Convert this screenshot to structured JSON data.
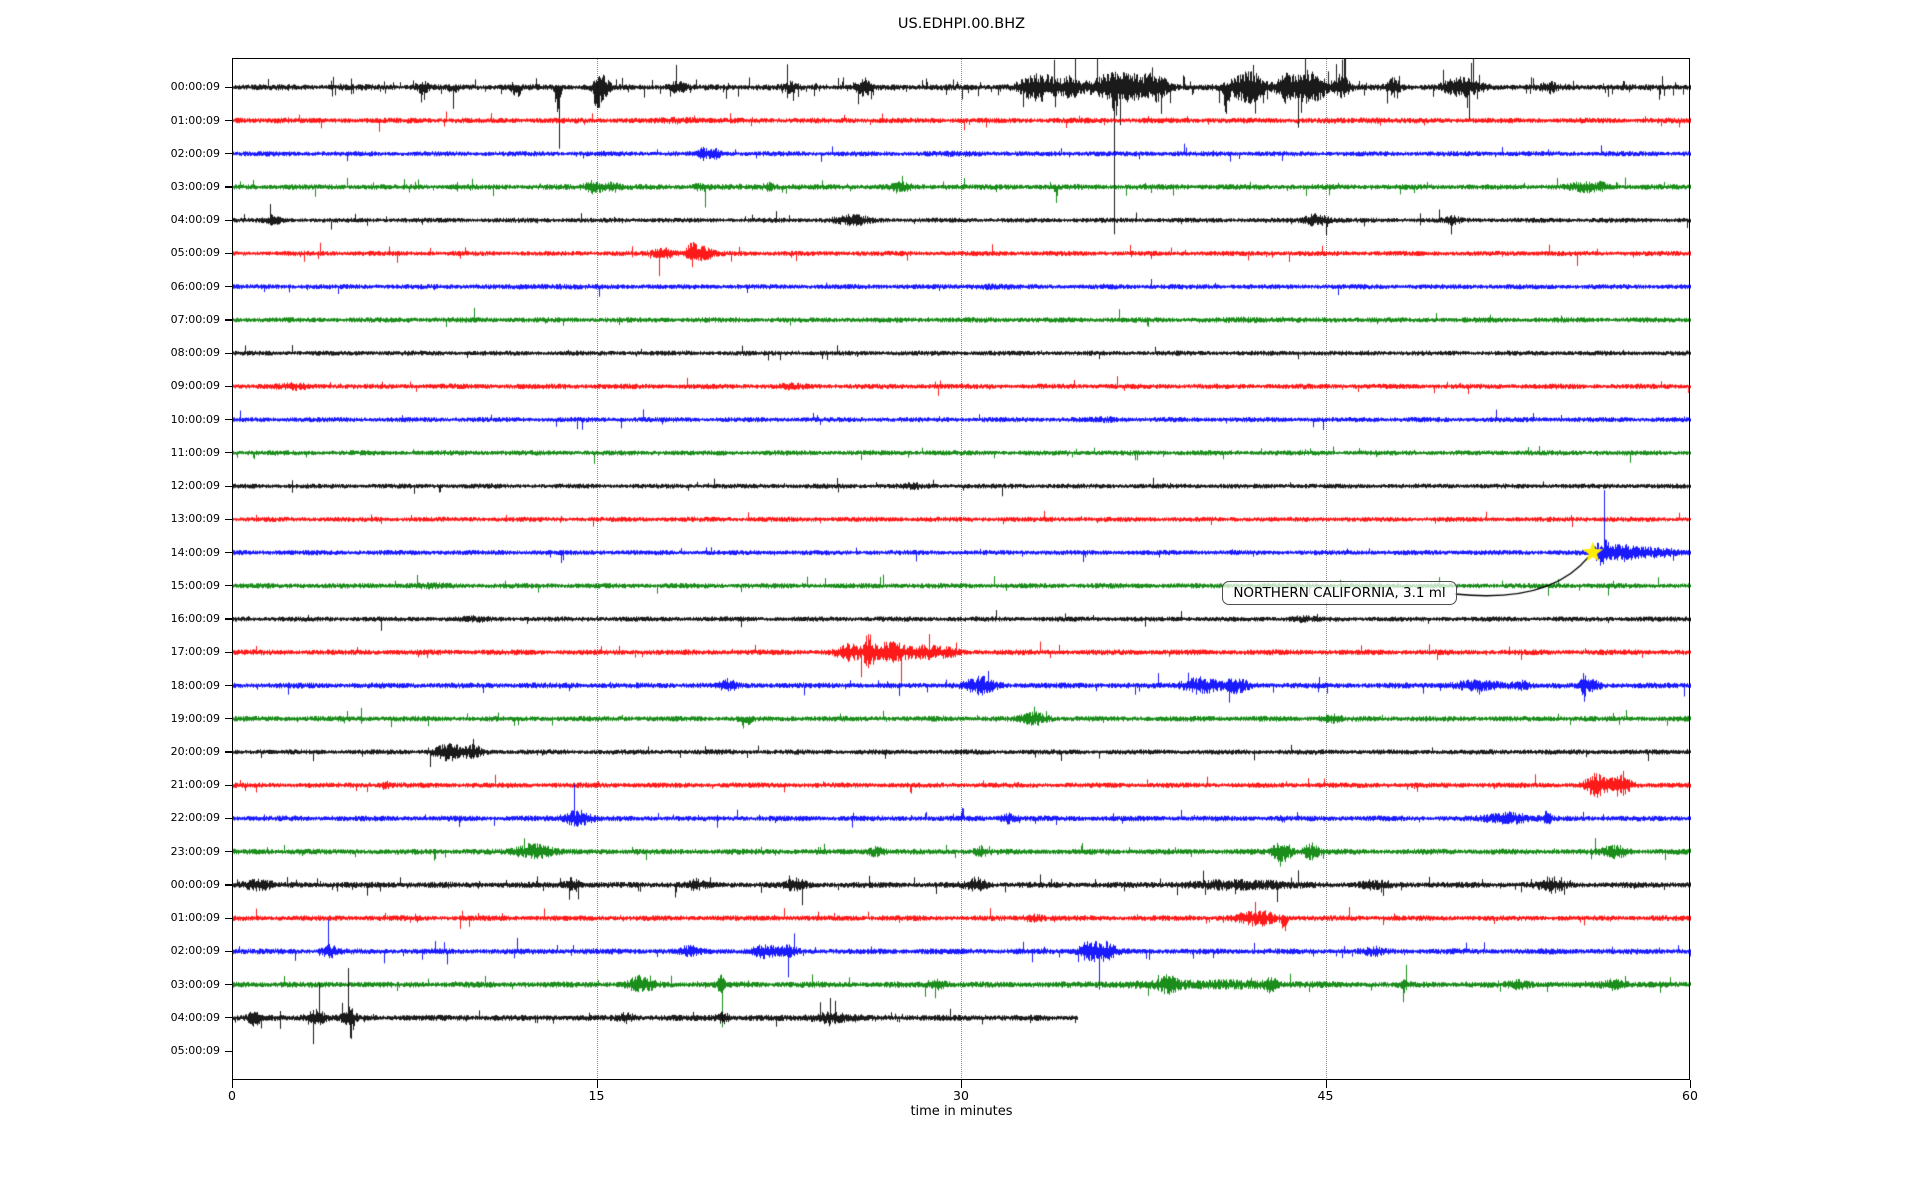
{
  "title": "US.EDHPI.00.BHZ",
  "colors": {
    "background": "#ffffff",
    "frame": "#000000",
    "grid": "#8a8a8a",
    "annotation_border": "#4d4d4d",
    "arrow": "#000000"
  },
  "chart_data": {
    "type": "line",
    "variant": "seismogram-helicorder-dayplot",
    "title": "US.EDHPI.00.BHZ",
    "xlabel": "time in minutes",
    "xlim": [
      0,
      60
    ],
    "xticks": [
      0,
      15,
      30,
      45,
      60
    ],
    "grid_minutes": [
      15,
      30,
      45
    ],
    "grid_on": true,
    "color_cycle": [
      "#000000",
      "#ff0000",
      "#0000ff",
      "#008000"
    ],
    "annotation": {
      "text": "NORTHERN CALIFORNIA, 3.1 ml",
      "row_index": 14,
      "row_label": "14:00:09",
      "minute": 56.0,
      "marker": "star",
      "marker_color": "#ffec00"
    },
    "rows": [
      {
        "label": "00:00:09",
        "end": 60,
        "base": 2.8,
        "p": 0.05,
        "bursts": [
          {
            "m": 7.8,
            "w": 0.25,
            "a": 5
          },
          {
            "m": 9.1,
            "w": 0.15,
            "a": 7,
            "d": -1
          },
          {
            "m": 11.7,
            "w": 0.2,
            "a": 8,
            "d": -1
          },
          {
            "m": 13.4,
            "w": 0.1,
            "a": 46,
            "d": -1
          },
          {
            "m": 15.0,
            "w": 0.12,
            "a": 36,
            "d": -1
          },
          {
            "m": 15.2,
            "w": 0.3,
            "a": 10
          },
          {
            "m": 18.3,
            "w": 0.3,
            "a": 6
          },
          {
            "m": 23.0,
            "w": 0.3,
            "a": 4
          },
          {
            "m": 26.0,
            "w": 0.3,
            "a": 7
          },
          {
            "m": 33.2,
            "w": 0.8,
            "a": 12
          },
          {
            "m": 34.5,
            "w": 0.4,
            "a": 8
          },
          {
            "m": 36.5,
            "w": 1.2,
            "a": 14
          },
          {
            "m": 36.3,
            "w": 0.1,
            "a": 24,
            "d": -1
          },
          {
            "m": 38.0,
            "w": 0.5,
            "a": 10
          },
          {
            "m": 40.9,
            "w": 0.1,
            "a": 40,
            "d": -1
          },
          {
            "m": 41.8,
            "w": 0.7,
            "a": 15
          },
          {
            "m": 43.3,
            "w": 0.3,
            "a": 10
          },
          {
            "m": 44.3,
            "w": 0.8,
            "a": 15
          },
          {
            "m": 45.7,
            "w": 0.3,
            "a": 9
          },
          {
            "m": 47.8,
            "w": 0.25,
            "a": 8
          },
          {
            "m": 50.6,
            "w": 0.8,
            "a": 8
          },
          {
            "m": 54.2,
            "w": 0.3,
            "a": 4
          }
        ]
      },
      {
        "label": "01:00:09",
        "end": 60,
        "base": 2.6,
        "p": 0.012,
        "bursts": [
          {
            "m": 2.0,
            "w": 0.5,
            "a": 1
          },
          {
            "m": 18.5,
            "w": 0.8,
            "a": 1.5
          },
          {
            "m": 47.0,
            "w": 0.6,
            "a": 1
          }
        ]
      },
      {
        "label": "02:00:09",
        "end": 60,
        "base": 2.4,
        "p": 0.01,
        "bursts": [
          {
            "m": 19.4,
            "w": 0.25,
            "a": 5
          },
          {
            "m": 19.9,
            "w": 0.2,
            "a": 4
          },
          {
            "m": 30.0,
            "w": 1.0,
            "a": 0.8
          }
        ]
      },
      {
        "label": "03:00:09",
        "end": 60,
        "base": 2.6,
        "p": 0.015,
        "bursts": [
          {
            "m": 14.9,
            "w": 0.35,
            "a": 6
          },
          {
            "m": 15.7,
            "w": 0.3,
            "a": 4
          },
          {
            "m": 19.3,
            "w": 0.3,
            "a": 3
          },
          {
            "m": 22.1,
            "w": 0.3,
            "a": 3
          },
          {
            "m": 27.5,
            "w": 0.4,
            "a": 3
          },
          {
            "m": 33.9,
            "w": 0.08,
            "a": 14,
            "d": -1
          },
          {
            "m": 55.6,
            "w": 0.5,
            "a": 4
          },
          {
            "m": 56.3,
            "w": 0.3,
            "a": 3
          }
        ]
      },
      {
        "label": "04:00:09",
        "end": 60,
        "base": 2.3,
        "p": 0.01,
        "bursts": [
          {
            "m": 1.7,
            "w": 0.3,
            "a": 4
          },
          {
            "m": 25.5,
            "w": 0.7,
            "a": 4
          },
          {
            "m": 44.6,
            "w": 0.5,
            "a": 5
          },
          {
            "m": 50.2,
            "w": 0.3,
            "a": 3
          }
        ]
      },
      {
        "label": "05:00:09",
        "end": 60,
        "base": 2.4,
        "p": 0.01,
        "bursts": [
          {
            "m": 17.8,
            "w": 0.5,
            "a": 4
          },
          {
            "m": 18.9,
            "w": 0.25,
            "a": 12
          },
          {
            "m": 19.4,
            "w": 0.4,
            "a": 5
          }
        ]
      },
      {
        "label": "06:00:09",
        "end": 60,
        "base": 2.4,
        "p": 0.008,
        "bursts": [
          {
            "m": 13.0,
            "w": 1.0,
            "a": 0.8
          },
          {
            "m": 31.0,
            "w": 0.8,
            "a": 1
          }
        ]
      },
      {
        "label": "07:00:09",
        "end": 60,
        "base": 2.5,
        "p": 0.008,
        "bursts": [
          {
            "m": 42.0,
            "w": 1.0,
            "a": 0.8
          }
        ]
      },
      {
        "label": "08:00:09",
        "end": 60,
        "base": 2.3,
        "p": 0.008,
        "bursts": []
      },
      {
        "label": "09:00:09",
        "end": 60,
        "base": 2.5,
        "p": 0.01,
        "bursts": [
          {
            "m": 2.5,
            "w": 0.6,
            "a": 2
          },
          {
            "m": 23.0,
            "w": 0.5,
            "a": 1.5
          }
        ]
      },
      {
        "label": "10:00:09",
        "end": 60,
        "base": 2.4,
        "p": 0.008,
        "bursts": [
          {
            "m": 36.0,
            "w": 0.8,
            "a": 1
          }
        ]
      },
      {
        "label": "11:00:09",
        "end": 60,
        "base": 2.4,
        "p": 0.008,
        "bursts": []
      },
      {
        "label": "12:00:09",
        "end": 60,
        "base": 2.3,
        "p": 0.008,
        "bursts": [
          {
            "m": 28.0,
            "w": 0.5,
            "a": 1.5
          }
        ]
      },
      {
        "label": "13:00:09",
        "end": 60,
        "base": 2.4,
        "p": 0.008,
        "bursts": []
      },
      {
        "label": "14:00:09",
        "end": 60,
        "base": 2.4,
        "p": 0.01,
        "bursts": [
          {
            "m": 56.4,
            "w": 0.35,
            "a": 11
          },
          {
            "m": 57.2,
            "w": 0.5,
            "a": 6
          },
          {
            "m": 58.3,
            "w": 1.2,
            "a": 3.5
          }
        ]
      },
      {
        "label": "15:00:09",
        "end": 60,
        "base": 2.5,
        "p": 0.008,
        "bursts": [
          {
            "m": 8.0,
            "w": 1.0,
            "a": 0.8
          }
        ]
      },
      {
        "label": "16:00:09",
        "end": 60,
        "base": 2.4,
        "p": 0.01,
        "bursts": [
          {
            "m": 10.0,
            "w": 0.5,
            "a": 1.5
          },
          {
            "m": 44.0,
            "w": 0.5,
            "a": 1.5
          }
        ]
      },
      {
        "label": "17:00:09",
        "end": 60,
        "base": 2.6,
        "p": 0.012,
        "bursts": [
          {
            "m": 25.4,
            "w": 0.5,
            "a": 7
          },
          {
            "m": 26.2,
            "w": 0.18,
            "a": 16
          },
          {
            "m": 27.1,
            "w": 0.8,
            "a": 9
          },
          {
            "m": 28.6,
            "w": 0.6,
            "a": 5
          },
          {
            "m": 29.5,
            "w": 0.4,
            "a": 3
          }
        ]
      },
      {
        "label": "18:00:09",
        "end": 60,
        "base": 2.7,
        "p": 0.015,
        "bursts": [
          {
            "m": 20.4,
            "w": 0.3,
            "a": 5
          },
          {
            "m": 30.8,
            "w": 0.6,
            "a": 7
          },
          {
            "m": 39.8,
            "w": 0.7,
            "a": 7
          },
          {
            "m": 41.3,
            "w": 0.5,
            "a": 6
          },
          {
            "m": 51.2,
            "w": 0.9,
            "a": 4
          },
          {
            "m": 53.0,
            "w": 0.4,
            "a": 4
          },
          {
            "m": 55.6,
            "w": 0.12,
            "a": 11
          },
          {
            "m": 56.0,
            "w": 0.3,
            "a": 5
          }
        ]
      },
      {
        "label": "19:00:09",
        "end": 60,
        "base": 2.6,
        "p": 0.012,
        "bursts": [
          {
            "m": 21.1,
            "w": 0.2,
            "a": 8,
            "d": -1
          },
          {
            "m": 33.0,
            "w": 0.5,
            "a": 5
          },
          {
            "m": 45.2,
            "w": 0.4,
            "a": 3
          }
        ]
      },
      {
        "label": "20:00:09",
        "end": 60,
        "base": 2.4,
        "p": 0.012,
        "bursts": [
          {
            "m": 8.9,
            "w": 0.6,
            "a": 7
          },
          {
            "m": 9.9,
            "w": 0.4,
            "a": 5
          }
        ]
      },
      {
        "label": "21:00:09",
        "end": 60,
        "base": 2.5,
        "p": 0.012,
        "bursts": [
          {
            "m": 6.3,
            "w": 0.2,
            "a": 3
          },
          {
            "m": 56.1,
            "w": 0.4,
            "a": 10
          },
          {
            "m": 57.1,
            "w": 0.45,
            "a": 9
          }
        ]
      },
      {
        "label": "22:00:09",
        "end": 60,
        "base": 2.6,
        "p": 0.012,
        "bursts": [
          {
            "m": 14.2,
            "w": 0.55,
            "a": 7
          },
          {
            "m": 31.9,
            "w": 0.3,
            "a": 4
          },
          {
            "m": 52.5,
            "w": 0.8,
            "a": 5
          },
          {
            "m": 54.1,
            "w": 0.15,
            "a": 6
          }
        ]
      },
      {
        "label": "23:00:09",
        "end": 60,
        "base": 2.7,
        "p": 0.015,
        "bursts": [
          {
            "m": 12.4,
            "w": 0.7,
            "a": 7
          },
          {
            "m": 26.5,
            "w": 0.3,
            "a": 4
          },
          {
            "m": 30.8,
            "w": 0.25,
            "a": 4
          },
          {
            "m": 43.2,
            "w": 0.4,
            "a": 9
          },
          {
            "m": 44.4,
            "w": 0.3,
            "a": 7
          },
          {
            "m": 56.9,
            "w": 0.5,
            "a": 5
          }
        ]
      },
      {
        "label": "00:00:09",
        "end": 60,
        "base": 2.8,
        "p": 0.02,
        "bursts": [
          {
            "m": 1.0,
            "w": 0.6,
            "a": 4
          },
          {
            "m": 14.0,
            "w": 0.3,
            "a": 6
          },
          {
            "m": 19.1,
            "w": 0.3,
            "a": 4
          },
          {
            "m": 23.2,
            "w": 0.4,
            "a": 5
          },
          {
            "m": 30.6,
            "w": 0.4,
            "a": 6
          },
          {
            "m": 41.5,
            "w": 2.0,
            "a": 3.5
          },
          {
            "m": 47.0,
            "w": 0.5,
            "a": 3
          },
          {
            "m": 54.3,
            "w": 0.5,
            "a": 6
          }
        ]
      },
      {
        "label": "01:00:09",
        "end": 60,
        "base": 2.6,
        "p": 0.012,
        "bursts": [
          {
            "m": 33.0,
            "w": 0.4,
            "a": 3
          },
          {
            "m": 42.2,
            "w": 0.8,
            "a": 6
          },
          {
            "m": 43.3,
            "w": 0.12,
            "a": 13,
            "d": -1
          }
        ]
      },
      {
        "label": "02:00:09",
        "end": 60,
        "base": 2.7,
        "p": 0.015,
        "bursts": [
          {
            "m": 4.0,
            "w": 0.3,
            "a": 5
          },
          {
            "m": 18.8,
            "w": 0.4,
            "a": 4
          },
          {
            "m": 21.9,
            "w": 0.5,
            "a": 5
          },
          {
            "m": 22.9,
            "w": 0.35,
            "a": 4
          },
          {
            "m": 35.3,
            "w": 0.45,
            "a": 9
          },
          {
            "m": 36.0,
            "w": 0.35,
            "a": 7
          },
          {
            "m": 47.0,
            "w": 0.4,
            "a": 3
          }
        ]
      },
      {
        "label": "03:00:09",
        "end": 60,
        "base": 2.8,
        "p": 0.015,
        "bursts": [
          {
            "m": 16.8,
            "w": 0.5,
            "a": 7
          },
          {
            "m": 20.1,
            "w": 0.15,
            "a": 8
          },
          {
            "m": 29.0,
            "w": 0.4,
            "a": 4
          },
          {
            "m": 38.5,
            "w": 0.35,
            "a": 6
          },
          {
            "m": 40.0,
            "w": 3.5,
            "a": 2.5
          },
          {
            "m": 42.7,
            "w": 0.25,
            "a": 6
          },
          {
            "m": 48.2,
            "w": 0.15,
            "a": 6
          },
          {
            "m": 53.0,
            "w": 0.5,
            "a": 3
          },
          {
            "m": 56.9,
            "w": 0.5,
            "a": 4
          }
        ]
      },
      {
        "label": "04:00:09",
        "end": 34.8,
        "base": 2.8,
        "p": 0.02,
        "bursts": [
          {
            "m": 0.9,
            "w": 0.25,
            "a": 6
          },
          {
            "m": 3.4,
            "w": 0.4,
            "a": 7
          },
          {
            "m": 4.8,
            "w": 0.25,
            "a": 9
          },
          {
            "m": 4.9,
            "w": 0.08,
            "a": 12,
            "d": -1
          },
          {
            "m": 16.2,
            "w": 0.3,
            "a": 4
          },
          {
            "m": 20.2,
            "w": 0.3,
            "a": 4
          },
          {
            "m": 24.5,
            "w": 0.8,
            "a": 4
          }
        ]
      },
      {
        "label": "05:00:09",
        "end": 0,
        "base": 0,
        "p": 0,
        "bursts": []
      }
    ]
  }
}
